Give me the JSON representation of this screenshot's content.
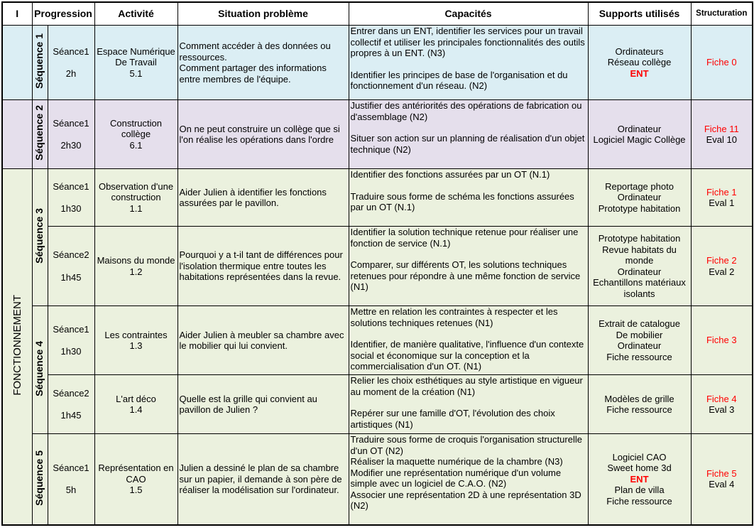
{
  "header": {
    "corner": "I",
    "columns": [
      "Progression",
      "Activité",
      "Situation problème",
      "Capacités",
      "Supports utilisés",
      "Structuration"
    ]
  },
  "theme": "FONCTIONNEMENT",
  "sequences": [
    {
      "label": "Séquence 1",
      "color": "#dbeef4",
      "seances": [
        {
          "seance": "Séance1",
          "duration": "2h",
          "activite": {
            "name": "Espace Numérique De Travail",
            "code": "5.1"
          },
          "situation": [
            "Comment accéder à des données ou ressources.",
            "Comment  partager des informations entre membres de l'équipe."
          ],
          "capacites": [
            "Entrer dans un ENT, identifier les services pour un travail collectif et utiliser les principales fonctionnalités des outils propres à un ENT. (N3)",
            "Identifier les principes de base de l'organisation et du fonctionnement d'un réseau. (N2)"
          ],
          "supports": [
            "Ordinateurs",
            "Réseau collège",
            {
              "text": "ENT",
              "color": "#ff0000"
            }
          ],
          "structuration": {
            "fiche": "Fiche 0"
          }
        }
      ]
    },
    {
      "label": "Séquence 2",
      "color": "#e5dfec",
      "seances": [
        {
          "seance": "Séance1",
          "duration": "2h30",
          "activite": {
            "name": "Construction collège",
            "code": "6.1"
          },
          "situation": [
            "On ne peut construire un collège que si l'on réalise les opérations dans l'ordre"
          ],
          "capacites": [
            "Justifier des antériorités des opérations de fabrication ou d'assemblage (N2)",
            "Situer son action sur un planning de réalisation d'un objet technique (N2)"
          ],
          "supports": [
            "Ordinateur",
            "Logiciel Magic Collège"
          ],
          "structuration": {
            "fiche": "Fiche 11",
            "eval": "Eval 10"
          }
        }
      ]
    },
    {
      "label": "Séquence 3",
      "color": "#ebf1de",
      "seances": [
        {
          "seance": "Séance1",
          "duration": "1h30",
          "activite": {
            "name": "Observation d'une construction",
            "code": "1.1"
          },
          "situation": [
            "Aider Julien à identifier les fonctions assurées par le pavillon."
          ],
          "capacites": [
            "Identifier des fonctions assurées par un OT (N.1)",
            "Traduire sous forme de schéma les fonctions assurées par un OT (N.1)"
          ],
          "supports": [
            "Reportage photo",
            "Ordinateur",
            "Prototype habitation"
          ],
          "structuration": {
            "fiche": "Fiche 1",
            "eval": "Eval 1"
          }
        },
        {
          "seance": "Séance2",
          "duration": "1h45",
          "activite": {
            "name": "Maisons du monde",
            "code": "1.2"
          },
          "situation": [
            "Pourquoi y a t-il tant de différences pour l'isolation thermique entre toutes les habitations représentées dans la revue."
          ],
          "capacites": [
            "Identifier la solution technique retenue pour réaliser une fonction de service (N.1)",
            "Comparer, sur différents OT, les solutions techniques retenues pour répondre à une même fonction de service (N1)"
          ],
          "supports": [
            "Prototype habitation",
            "Revue habitats du monde",
            "Ordinateur",
            "Echantillons matériaux isolants"
          ],
          "structuration": {
            "fiche": "Fiche 2",
            "eval": "Eval 2"
          }
        }
      ]
    },
    {
      "label": "Séquence 4",
      "color": "#ebf1de",
      "seances": [
        {
          "seance": "Séance1",
          "duration": "1h30",
          "activite": {
            "name": "Les contraintes",
            "code": "1.3"
          },
          "situation": [
            "Aider Julien à meubler sa chambre avec le mobilier qui lui convient."
          ],
          "capacites": [
            "Mettre en relation les contraintes à respecter et les solutions techniques retenues (N1)",
            "Identifier, de manière qualitative, l'influence d'un contexte social et économique sur la conception et la commercialisation  d'un OT. (N1)"
          ],
          "supports": [
            "Extrait de catalogue",
            "De mobilier",
            "Ordinateur",
            "Fiche ressource"
          ],
          "structuration": {
            "fiche": "Fiche 3"
          }
        },
        {
          "seance": "Séance2",
          "duration": "1h45",
          "activite": {
            "name": "L'art déco",
            "code": "1.4"
          },
          "situation": [
            "Quelle est la grille qui convient  au pavillon de Julien ?"
          ],
          "capacites": [
            "Relier les choix esthétiques au style artistique en vigueur au moment de la création (N1)",
            "Repérer sur une famille d'OT, l'évolution des choix artistiques (N1)"
          ],
          "supports": [
            "Modèles de grille",
            "Fiche ressource"
          ],
          "structuration": {
            "fiche": "Fiche 4",
            "eval": "Eval 3"
          }
        }
      ]
    },
    {
      "label": "Séquence 5",
      "color": "#ebf1de",
      "seances": [
        {
          "seance": "Séance1",
          "duration": "5h",
          "activite": {
            "name": "Représentation en CAO",
            "code": "1.5"
          },
          "situation": [
            "Julien a dessiné le plan de sa chambre sur un papier, il demande à son père de réaliser la modélisation sur l'ordinateur."
          ],
          "capacites": [
            "Traduire sous forme de croquis l'organisation structurelle d'un OT (N2)",
            "Réaliser la maquette numérique  de la chambre  (N3)",
            "Modifier une représentation numérique d'un volume simple avec un logiciel de C.A.O. (N2)",
            "Associer une représentation 2D à une représentation 3D (N2)"
          ],
          "supports": [
            "Logiciel CAO",
            "Sweet home 3d",
            {
              "text": "ENT",
              "color": "#ff0000"
            },
            "Plan de villa",
            "Fiche ressource"
          ],
          "structuration": {
            "fiche": "Fiche 5",
            "eval": "Eval 4"
          }
        }
      ]
    }
  ]
}
